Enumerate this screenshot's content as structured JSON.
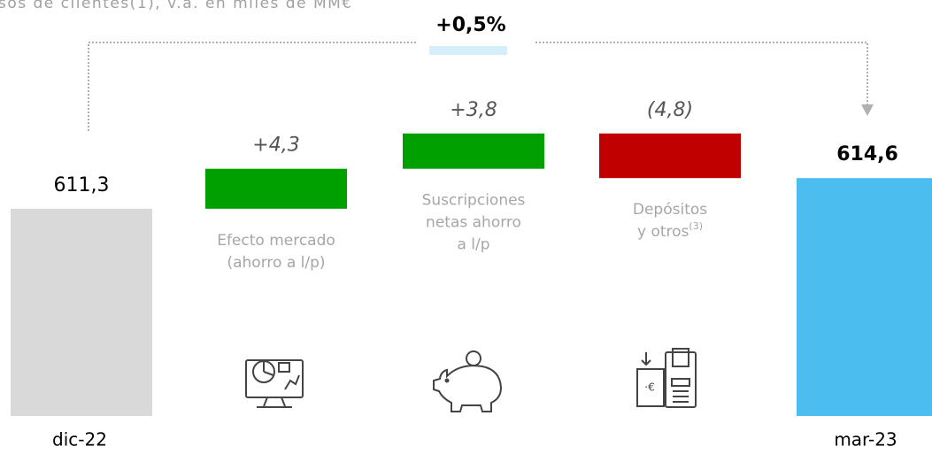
{
  "chart_data": {
    "type": "waterfall",
    "title": "sos de clientes(1), v.a. en miles de MM€",
    "annotation": "+0,5%",
    "categories": [
      "dic-22",
      [
        "Efecto mercado",
        "(ahorro a l/p)"
      ],
      [
        "Suscripciones",
        "netas ahorro",
        "a l/p"
      ],
      [
        "Depósitos",
        "y otros"
      ],
      "mar-23"
    ],
    "category_notes": [
      null,
      null,
      null,
      "(3)",
      null
    ],
    "kinds": [
      "total",
      "delta",
      "delta",
      "delta",
      "total"
    ],
    "values": [
      611.3,
      4.3,
      3.8,
      -4.8,
      614.6
    ],
    "value_labels": [
      "611,3",
      "+4,3",
      "+3,8",
      "(4,8)",
      "614,6"
    ],
    "colors": {
      "start": "#d9d9d9",
      "end": "#4bbdee",
      "increase": "#00a000",
      "decrease": "#c00000"
    },
    "ylim": [
      589,
      625
    ]
  }
}
